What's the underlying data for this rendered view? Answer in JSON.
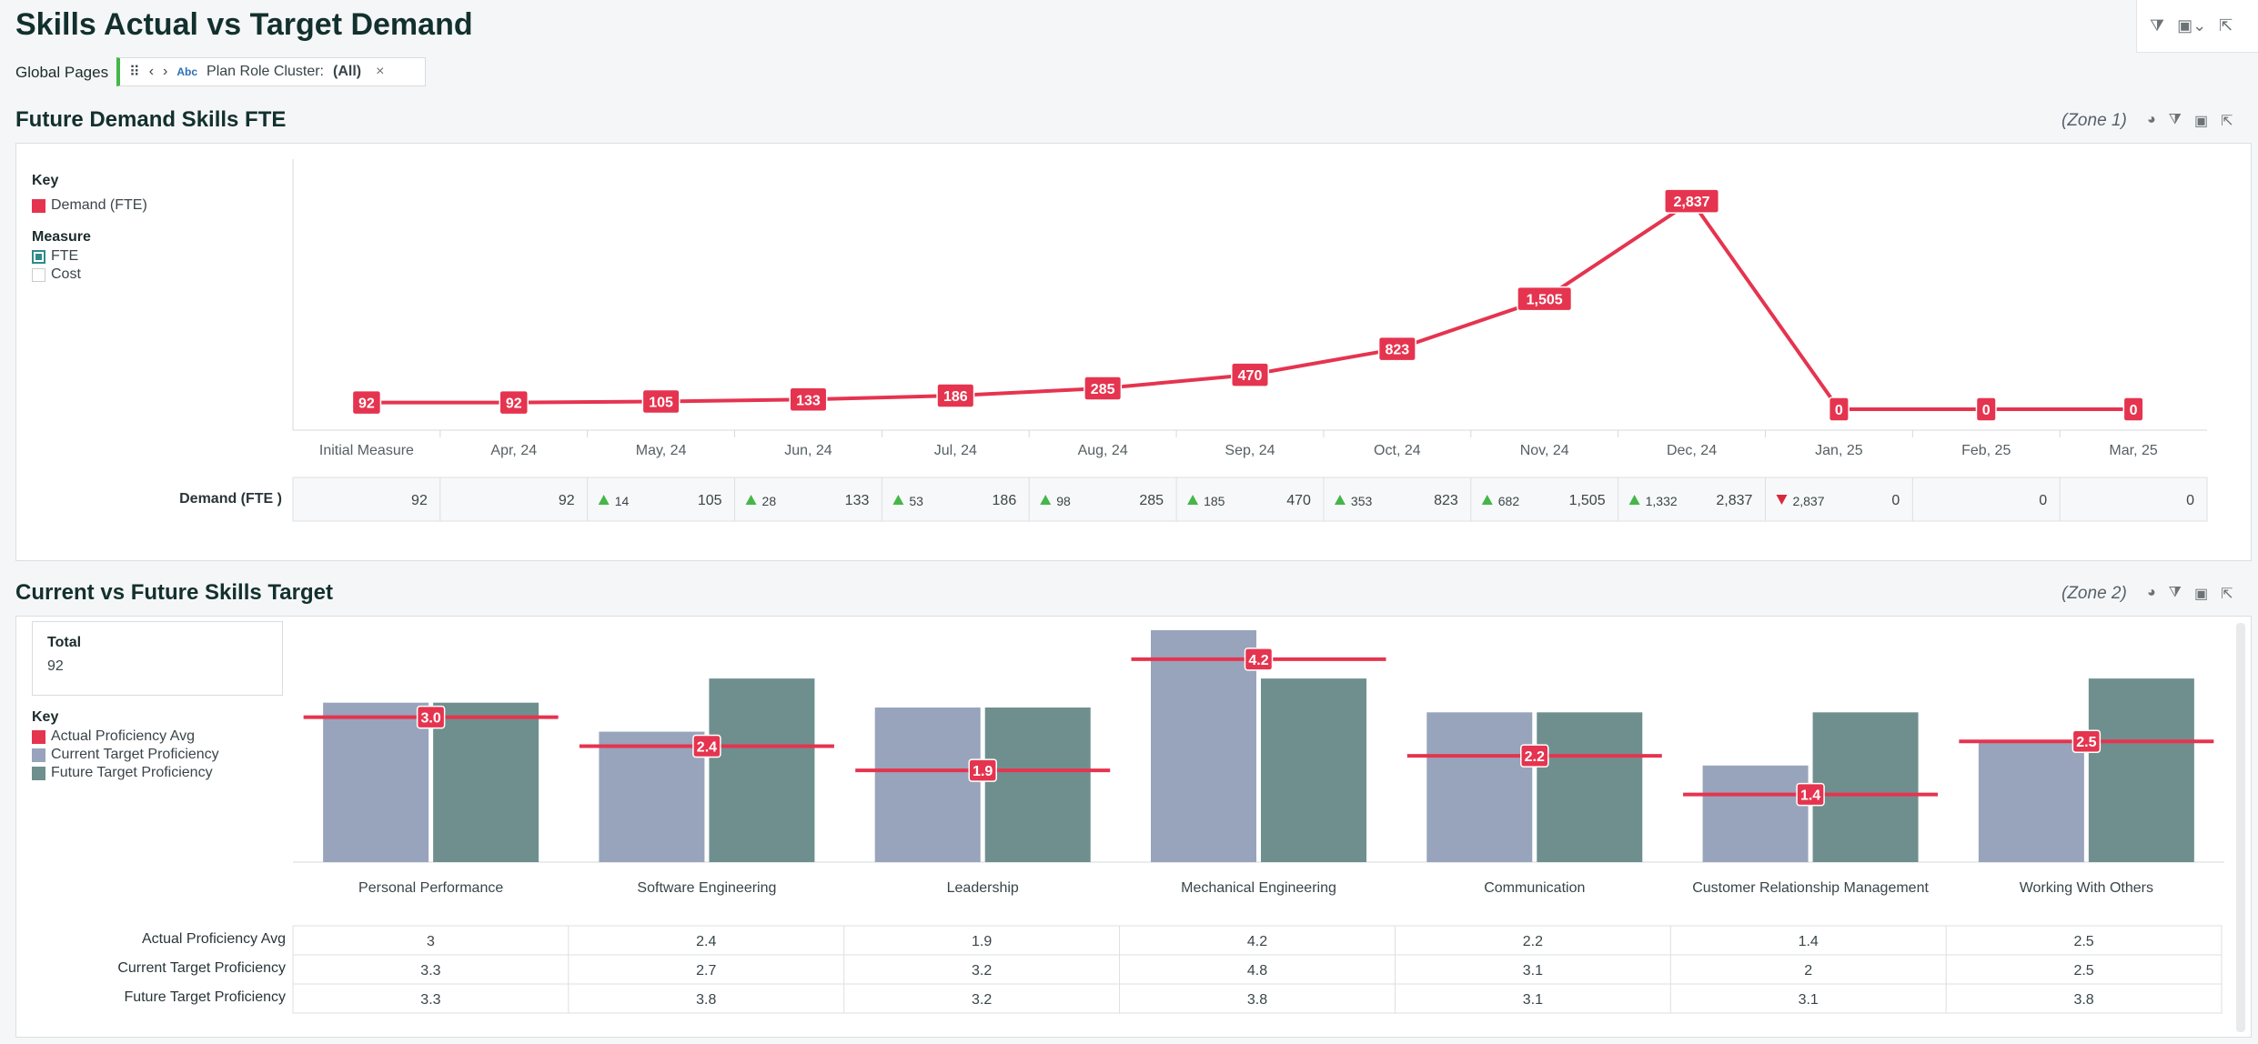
{
  "header": {
    "title": "Skills Actual vs Target Demand",
    "global_pages_label": "Global Pages",
    "filter_chip": {
      "type_badge": "Abc",
      "label": "Plan Role Cluster:",
      "value": "(All)",
      "close": "×"
    }
  },
  "colors": {
    "demand": "#e5344f",
    "current_target": "#98a4bb",
    "future_target": "#6f8f8f",
    "increase": "#45b649",
    "decrease": "#d9283c"
  },
  "section1": {
    "title": "Future Demand Skills FTE",
    "zone": "(Zone 1)",
    "legend": {
      "key_title": "Key",
      "key_item": "Demand (FTE)",
      "measure_title": "Measure",
      "measure_options": [
        "FTE",
        "Cost"
      ],
      "measure_selected": "FTE"
    }
  },
  "section2": {
    "title": "Current vs Future Skills Target",
    "zone": "(Zone 2)",
    "total_label": "Total",
    "total_value": "92",
    "legend": {
      "key_title": "Key",
      "items": [
        "Actual Proficiency Avg",
        "Current Target Proficiency",
        "Future Target Proficiency"
      ]
    }
  },
  "chart_data": [
    {
      "type": "line",
      "title": "Future Demand Skills FTE",
      "categories": [
        "Initial Measure",
        "Apr, 24",
        "May, 24",
        "Jun, 24",
        "Jul, 24",
        "Aug, 24",
        "Sep, 24",
        "Oct, 24",
        "Nov, 24",
        "Dec, 24",
        "Jan, 25",
        "Feb, 25",
        "Mar, 25"
      ],
      "series": [
        {
          "name": "Demand (FTE)",
          "values": [
            92,
            92,
            105,
            133,
            186,
            285,
            470,
            823,
            1505,
            2837,
            0,
            0,
            0
          ]
        }
      ],
      "data_labels": [
        "92",
        "92",
        "105",
        "133",
        "186",
        "285",
        "470",
        "823",
        "1,505",
        "2,837",
        "0",
        "0",
        "0"
      ],
      "ylim": [
        0,
        3000
      ],
      "grid": false,
      "table": {
        "row_label": "Demand (FTE )",
        "values": [
          "92",
          "92",
          "105",
          "133",
          "186",
          "285",
          "470",
          "823",
          "1,505",
          "2,837",
          "0",
          "0",
          "0"
        ],
        "deltas": [
          null,
          null,
          {
            "dir": "up",
            "v": "14"
          },
          {
            "dir": "up",
            "v": "28"
          },
          {
            "dir": "up",
            "v": "53"
          },
          {
            "dir": "up",
            "v": "98"
          },
          {
            "dir": "up",
            "v": "185"
          },
          {
            "dir": "up",
            "v": "353"
          },
          {
            "dir": "up",
            "v": "682"
          },
          {
            "dir": "up",
            "v": "1,332"
          },
          {
            "dir": "down",
            "v": "2,837"
          },
          null,
          null
        ]
      }
    },
    {
      "type": "bar",
      "title": "Current vs Future Skills Target",
      "categories": [
        "Personal Performance",
        "Software Engineering",
        "Leadership",
        "Mechanical Engineering",
        "Communication",
        "Customer Relationship Management",
        "Working With Others"
      ],
      "series": [
        {
          "name": "Current Target Proficiency",
          "values": [
            3.3,
            2.7,
            3.2,
            4.8,
            3.1,
            2,
            2.5
          ]
        },
        {
          "name": "Future Target Proficiency",
          "values": [
            3.3,
            3.8,
            3.2,
            3.8,
            3.1,
            3.1,
            3.8
          ]
        },
        {
          "name": "Actual Proficiency Avg",
          "values": [
            3,
            2.4,
            1.9,
            4.2,
            2.2,
            1.4,
            2.5
          ]
        }
      ],
      "actual_labels": [
        "3.0",
        "2.4",
        "1.9",
        "4.2",
        "2.2",
        "1.4",
        "2.5"
      ],
      "ylim": [
        0,
        4.8
      ],
      "grid": false,
      "table": {
        "rows": [
          {
            "label": "Actual Proficiency Avg",
            "values": [
              "3",
              "2.4",
              "1.9",
              "4.2",
              "2.2",
              "1.4",
              "2.5"
            ]
          },
          {
            "label": "Current Target Proficiency",
            "values": [
              "3.3",
              "2.7",
              "3.2",
              "4.8",
              "3.1",
              "2",
              "2.5"
            ]
          },
          {
            "label": "Future Target Proficiency",
            "values": [
              "3.3",
              "3.8",
              "3.2",
              "3.8",
              "3.1",
              "3.1",
              "3.8"
            ]
          }
        ]
      }
    }
  ]
}
